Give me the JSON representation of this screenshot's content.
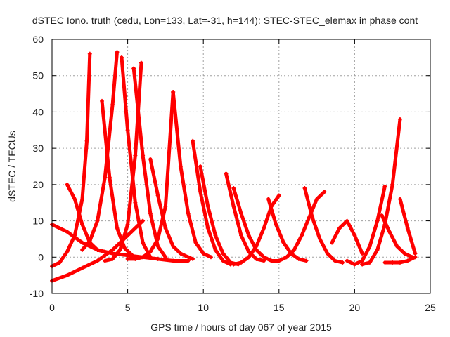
{
  "chart_data": {
    "type": "line",
    "title": "dSTEC Iono. truth (cedu, Lon=133, Lat=-31, h=144): STEC-STEC_elemax in phase cont",
    "xlabel": "GPS time / hours of day 067 of year 2015",
    "ylabel": "dSTEC  / TECUs",
    "xlim": [
      0,
      25
    ],
    "ylim": [
      -10,
      60
    ],
    "xticks": [
      0,
      5,
      10,
      15,
      20,
      25
    ],
    "yticks": [
      -10,
      0,
      10,
      20,
      30,
      40,
      50,
      60
    ],
    "grid": true,
    "color": "#ff0000",
    "marker": "plus",
    "series": [
      {
        "x": [
          0.0,
          0.5,
          1.0,
          1.5,
          2.0,
          2.3,
          2.5
        ],
        "y": [
          -2.5,
          -1.5,
          1.5,
          6.0,
          16.0,
          32.0,
          56.0
        ]
      },
      {
        "x": [
          1.0,
          1.5,
          2.0,
          2.5,
          3.0,
          3.5
        ],
        "y": [
          20.0,
          16.0,
          9.0,
          4.0,
          2.0,
          1.5
        ]
      },
      {
        "x": [
          2.0,
          2.5,
          3.0,
          3.5,
          4.0,
          4.3
        ],
        "y": [
          2.0,
          4.5,
          10.0,
          22.0,
          42.0,
          56.5
        ]
      },
      {
        "x": [
          3.3,
          3.8,
          4.3,
          4.8,
          5.3
        ],
        "y": [
          43.0,
          22.0,
          8.0,
          2.5,
          0.5
        ]
      },
      {
        "x": [
          3.5,
          4.0,
          4.5,
          5.0,
          5.5,
          5.9
        ],
        "y": [
          -1.0,
          -0.5,
          2.0,
          9.0,
          28.0,
          53.5
        ]
      },
      {
        "x": [
          4.6,
          5.0,
          5.5,
          6.0,
          6.5
        ],
        "y": [
          55.0,
          35.0,
          15.0,
          4.0,
          0.0
        ]
      },
      {
        "x": [
          5.0,
          5.5,
          6.0,
          6.5,
          7.0,
          7.5,
          8.0
        ],
        "y": [
          -0.5,
          -0.5,
          0.0,
          1.5,
          5.0,
          14.0,
          45.5
        ]
      },
      {
        "x": [
          5.4,
          6.0,
          6.5,
          7.0,
          7.5
        ],
        "y": [
          52.0,
          28.0,
          12.0,
          3.0,
          0.0
        ]
      },
      {
        "x": [
          6.5,
          7.0,
          7.5,
          8.0,
          8.5,
          9.0,
          9.3
        ],
        "y": [
          27.0,
          17.0,
          8.0,
          3.0,
          1.0,
          0.0,
          -0.5
        ]
      },
      {
        "x": [
          8.0,
          8.5,
          9.0,
          9.5,
          10.0,
          10.5
        ],
        "y": [
          45.5,
          25.0,
          12.0,
          4.0,
          1.0,
          0.0
        ]
      },
      {
        "x": [
          9.3,
          9.8,
          10.3,
          10.8,
          11.3,
          11.8
        ],
        "y": [
          32.0,
          18.0,
          8.0,
          2.0,
          -1.0,
          -2.0
        ]
      },
      {
        "x": [
          9.8,
          10.3,
          10.8,
          11.3,
          11.8,
          12.3
        ],
        "y": [
          25.0,
          14.0,
          6.0,
          1.0,
          -1.5,
          -2.0
        ]
      },
      {
        "x": [
          11.5,
          12.0,
          12.5,
          13.0,
          13.5,
          14.0
        ],
        "y": [
          23.0,
          14.0,
          6.0,
          1.5,
          -0.5,
          -1.0
        ]
      },
      {
        "x": [
          12.0,
          12.5,
          13.0,
          13.5,
          14.0,
          14.5,
          15.0
        ],
        "y": [
          19.0,
          12.0,
          6.0,
          2.0,
          0.0,
          -1.0,
          -1.0
        ]
      },
      {
        "x": [
          12.0,
          12.5,
          13.0,
          13.5,
          14.0,
          14.5,
          15.0
        ],
        "y": [
          -2.0,
          -1.5,
          0.0,
          3.0,
          8.0,
          14.0,
          17.0
        ]
      },
      {
        "x": [
          14.3,
          14.8,
          15.3,
          15.8,
          16.3,
          16.8
        ],
        "y": [
          16.0,
          9.0,
          4.0,
          1.0,
          -0.5,
          -1.0
        ]
      },
      {
        "x": [
          15.0,
          15.5,
          16.0,
          16.5,
          17.0,
          17.5,
          18.0
        ],
        "y": [
          -1.0,
          0.0,
          2.0,
          6.0,
          11.0,
          16.0,
          18.0
        ]
      },
      {
        "x": [
          16.7,
          17.2,
          17.7,
          18.2,
          18.7,
          19.2
        ],
        "y": [
          19.0,
          11.0,
          5.0,
          1.0,
          -1.0,
          -1.5
        ]
      },
      {
        "x": [
          18.5,
          19.0,
          19.5,
          20.0,
          20.5
        ],
        "y": [
          4.0,
          8.0,
          10.0,
          6.0,
          1.0
        ]
      },
      {
        "x": [
          19.5,
          20.0,
          20.5,
          21.0,
          21.5,
          22.0
        ],
        "y": [
          -1.0,
          -2.0,
          -1.0,
          3.0,
          10.0,
          19.5
        ]
      },
      {
        "x": [
          20.5,
          21.0,
          21.5,
          22.0,
          22.5,
          23.0
        ],
        "y": [
          -2.0,
          -1.5,
          2.0,
          9.0,
          20.0,
          38.0
        ]
      },
      {
        "x": [
          21.8,
          22.3,
          22.8,
          23.3,
          23.8
        ],
        "y": [
          11.5,
          7.0,
          3.0,
          1.0,
          0.0
        ]
      },
      {
        "x": [
          22.0,
          22.5,
          23.0,
          23.5,
          24.0
        ],
        "y": [
          -1.5,
          -1.5,
          -1.5,
          -1.0,
          0.0
        ]
      },
      {
        "x": [
          23.0,
          23.5,
          24.0
        ],
        "y": [
          16.0,
          8.0,
          1.0
        ]
      },
      {
        "x": [
          0.0,
          1.0,
          2.0,
          3.0,
          4.0,
          5.0,
          6.0,
          7.0,
          8.0,
          9.0
        ],
        "y": [
          9.0,
          7.0,
          4.0,
          2.0,
          1.0,
          0.5,
          0.0,
          -0.5,
          -1.0,
          -1.0
        ]
      },
      {
        "x": [
          0.0,
          1.0,
          2.0,
          3.0,
          4.0,
          5.0,
          6.0
        ],
        "y": [
          -6.5,
          -5.0,
          -3.0,
          -1.0,
          2.0,
          6.0,
          10.0
        ]
      }
    ]
  }
}
